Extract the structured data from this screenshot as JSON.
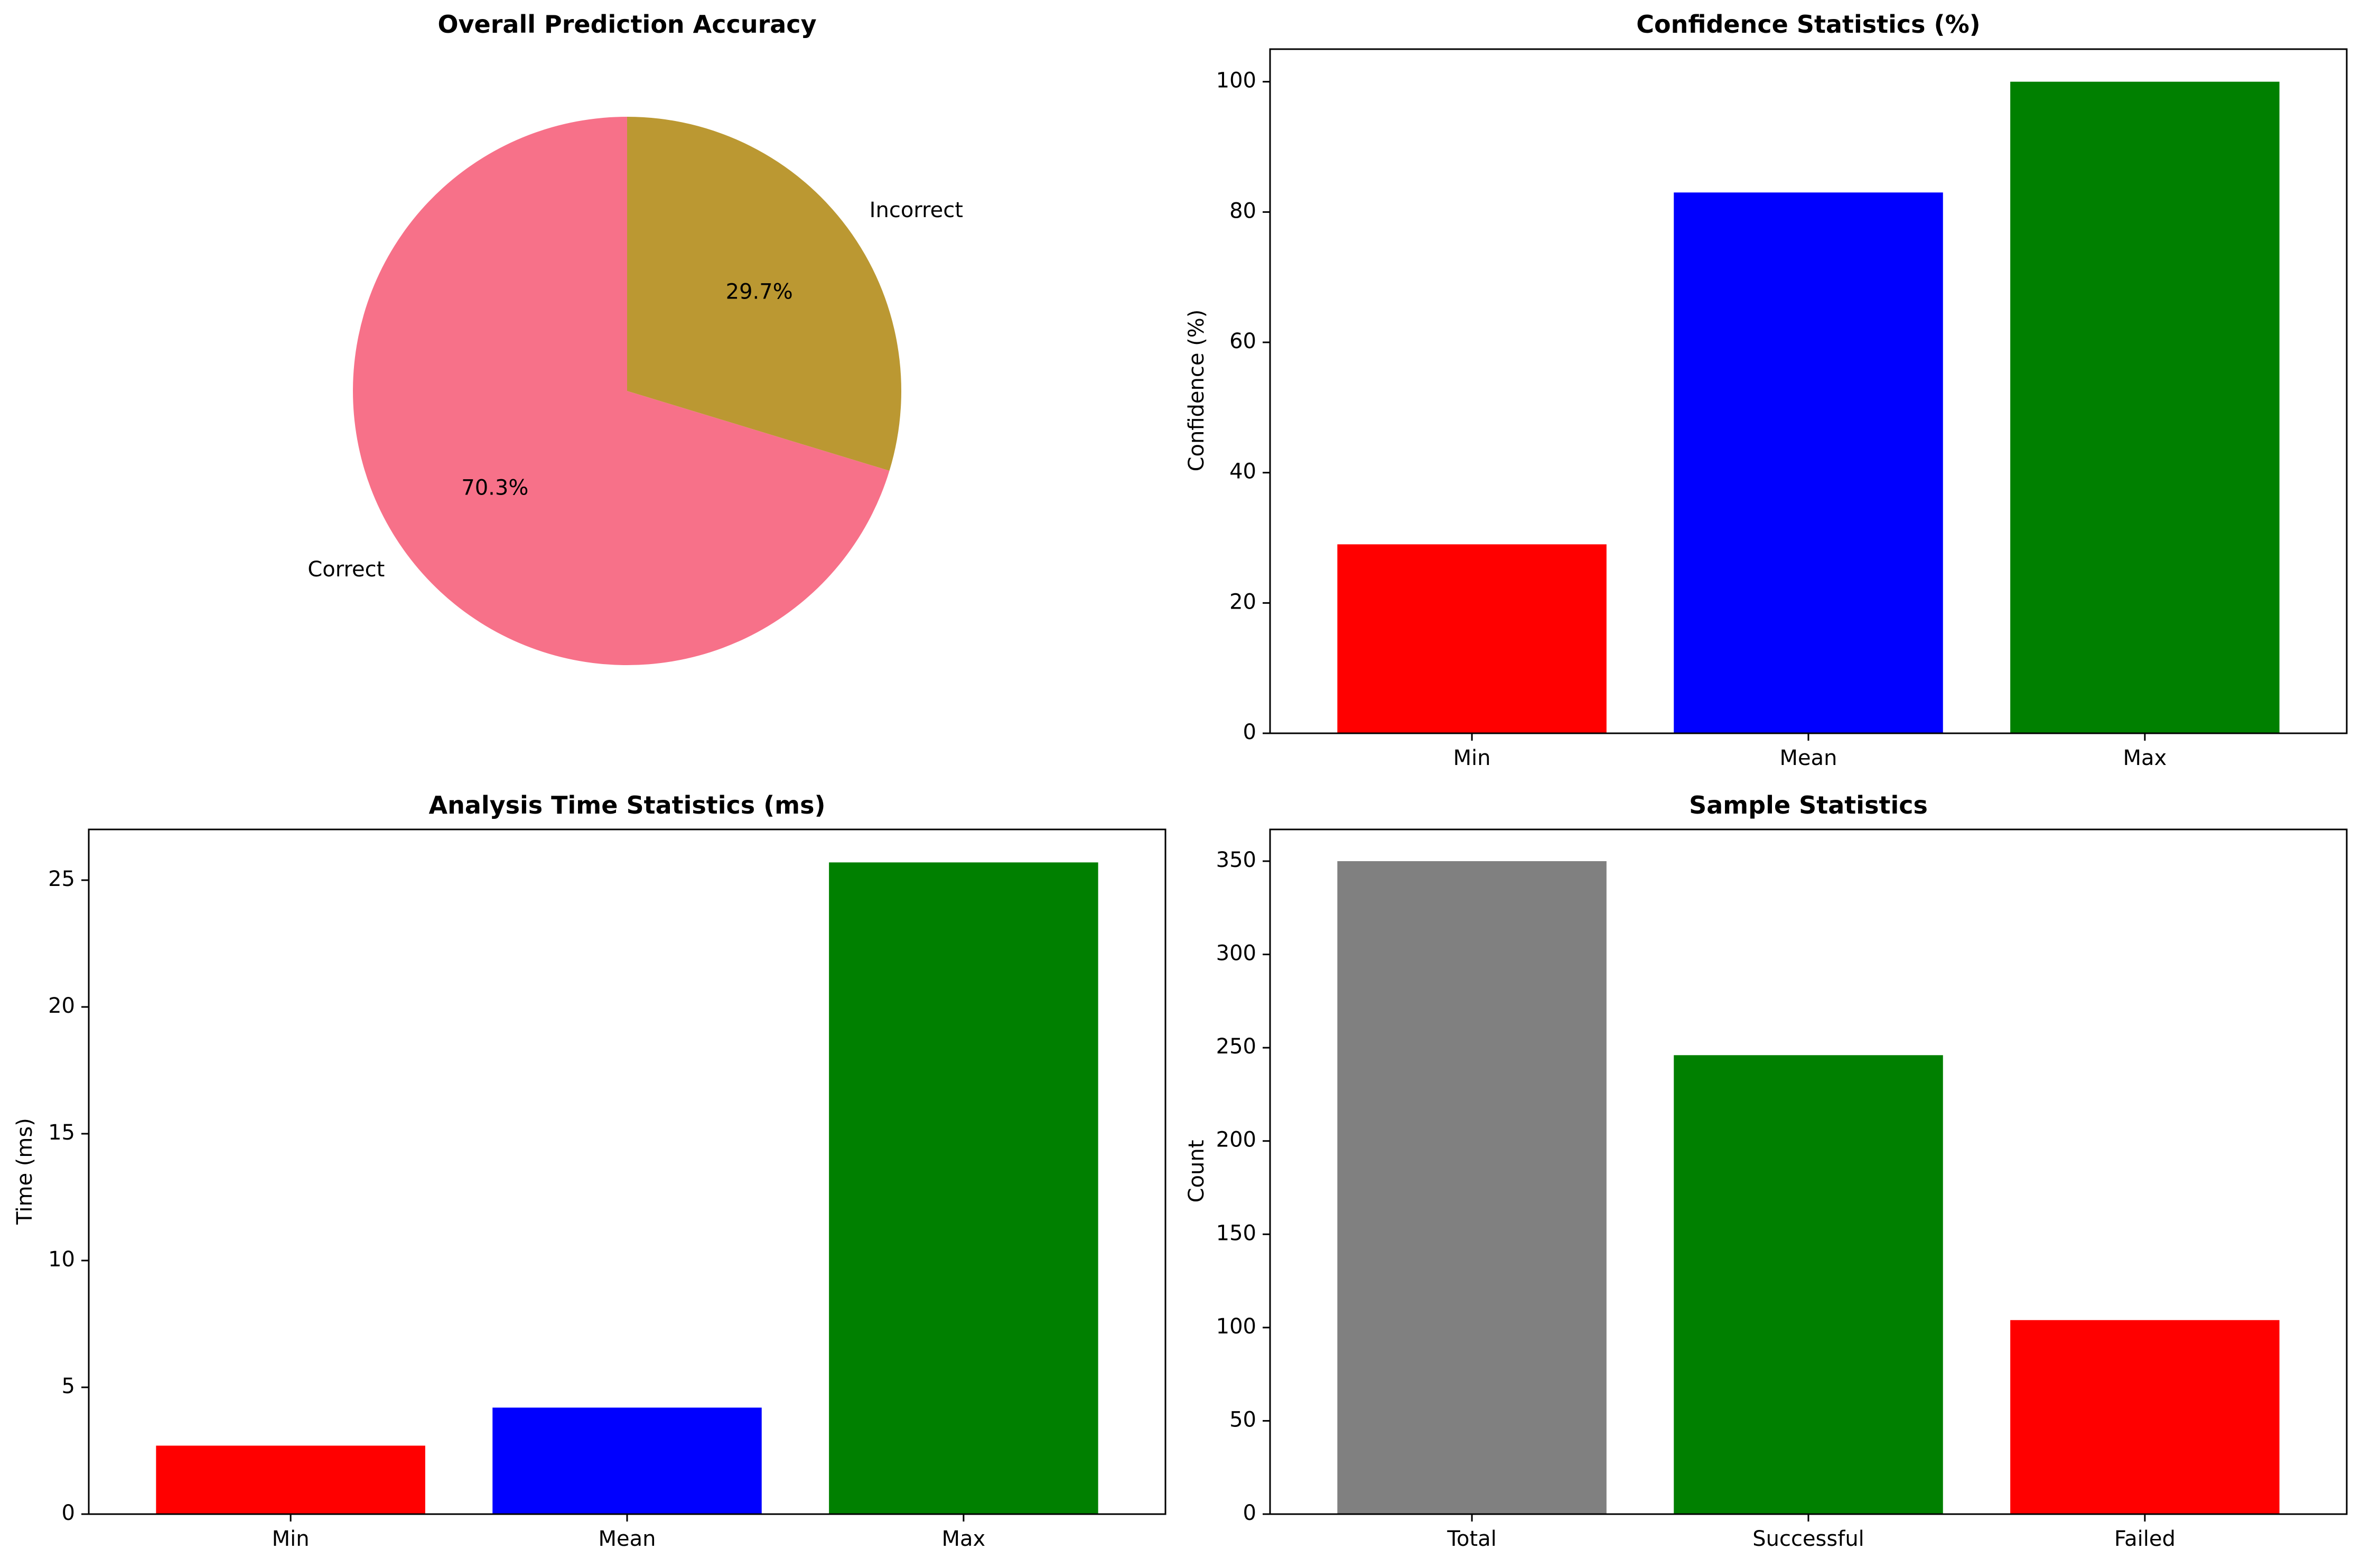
{
  "chart_data": [
    {
      "type": "pie",
      "title": "Overall Prediction Accuracy",
      "categories": [
        "Correct",
        "Incorrect"
      ],
      "values": [
        70.3,
        29.7
      ],
      "value_labels": [
        "70.3%",
        "29.7%"
      ],
      "colors": [
        "#f77189",
        "#bb9832"
      ],
      "start_angle": 90,
      "direction": "counterclockwise"
    },
    {
      "type": "bar",
      "title": "Confidence Statistics (%)",
      "xlabel": "",
      "ylabel": "Confidence (%)",
      "categories": [
        "Min",
        "Mean",
        "Max"
      ],
      "values": [
        29,
        83,
        100
      ],
      "colors": [
        "#ff0000",
        "#0000ff",
        "#008000"
      ],
      "ylim": [
        0,
        105
      ],
      "yticks": [
        0,
        20,
        40,
        60,
        80,
        100
      ]
    },
    {
      "type": "bar",
      "title": "Analysis Time Statistics (ms)",
      "xlabel": "",
      "ylabel": "Time (ms)",
      "categories": [
        "Min",
        "Mean",
        "Max"
      ],
      "values": [
        2.7,
        4.2,
        25.7
      ],
      "colors": [
        "#ff0000",
        "#0000ff",
        "#008000"
      ],
      "ylim": [
        0,
        27
      ],
      "yticks": [
        0,
        5,
        10,
        15,
        20,
        25
      ]
    },
    {
      "type": "bar",
      "title": "Sample Statistics",
      "xlabel": "",
      "ylabel": "Count",
      "categories": [
        "Total",
        "Successful",
        "Failed"
      ],
      "values": [
        350,
        246,
        104
      ],
      "colors": [
        "#808080",
        "#008000",
        "#ff0000"
      ],
      "ylim": [
        0,
        367
      ],
      "yticks": [
        0,
        50,
        100,
        150,
        200,
        250,
        300,
        350
      ]
    }
  ]
}
